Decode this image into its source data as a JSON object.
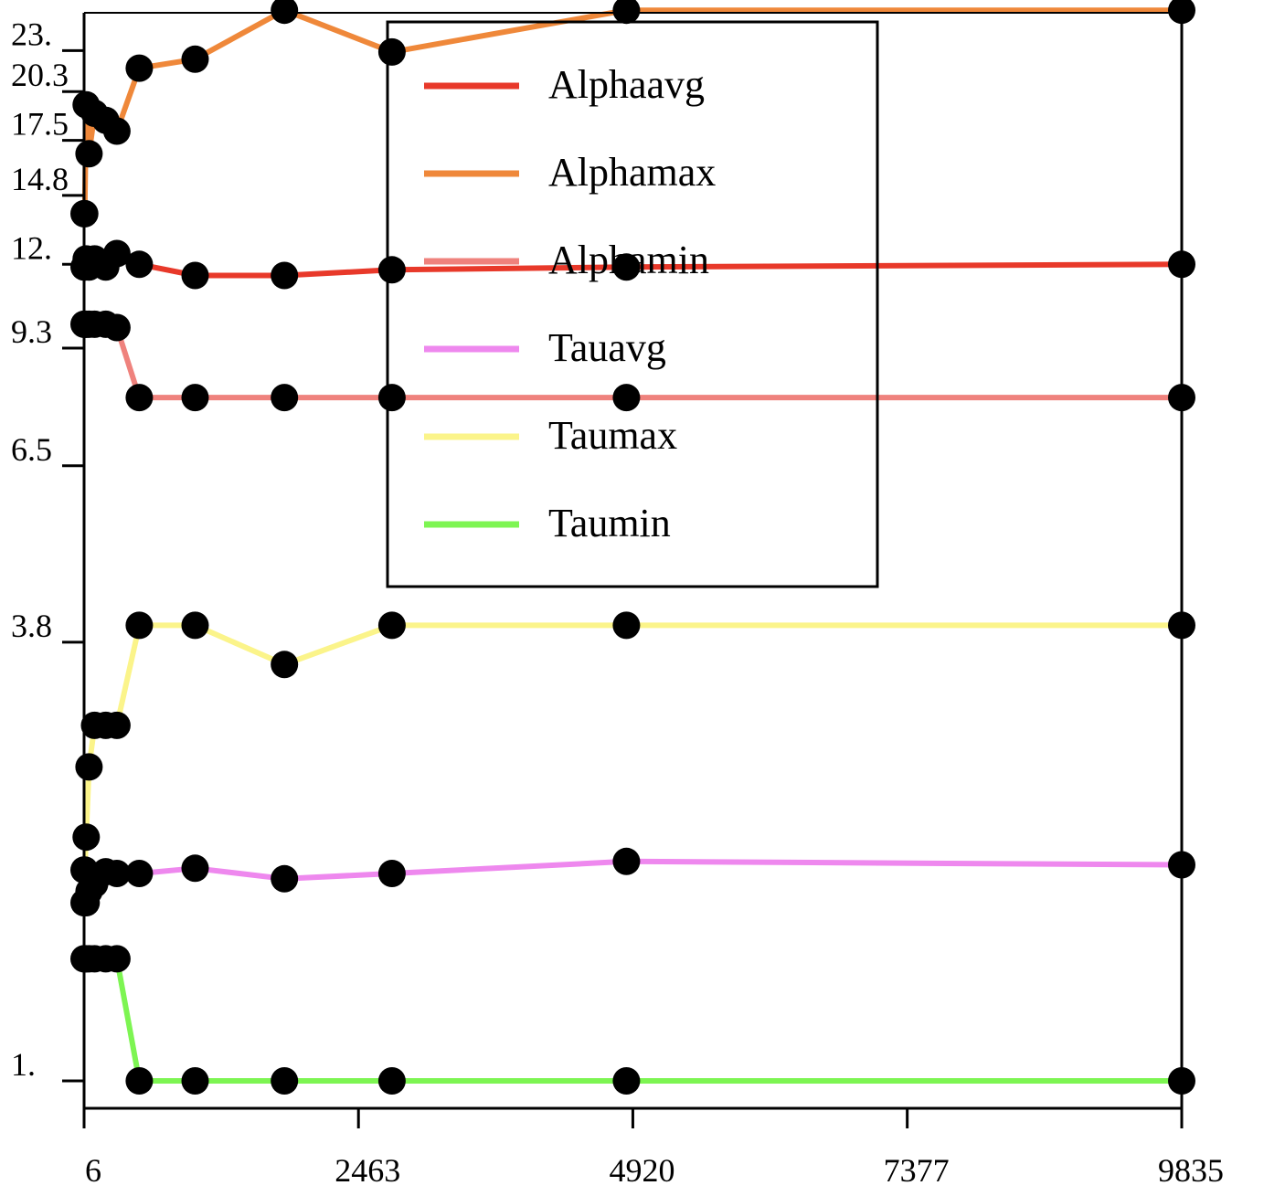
{
  "chart_data": {
    "type": "line",
    "x_ticks": [
      {
        "value": 6,
        "label": "6"
      },
      {
        "value": 2463,
        "label": "2463"
      },
      {
        "value": 4920,
        "label": "4920"
      },
      {
        "value": 7377,
        "label": "7377"
      },
      {
        "value": 9835,
        "label": "9835"
      }
    ],
    "y_scale": "log",
    "y_ticks": [
      {
        "value": 1.0,
        "label": "1."
      },
      {
        "value": 3.8,
        "label": "3.8"
      },
      {
        "value": 6.5,
        "label": "6.5"
      },
      {
        "value": 9.3,
        "label": "9.3"
      },
      {
        "value": 12.0,
        "label": "12."
      },
      {
        "value": 14.8,
        "label": "14.8"
      },
      {
        "value": 17.5,
        "label": "17.5"
      },
      {
        "value": 20.3,
        "label": "20.3"
      },
      {
        "value": 23.0,
        "label": "23."
      }
    ],
    "xlim": [
      6,
      9835
    ],
    "ylim": [
      0.92,
      25.8
    ],
    "legend_position": "top-center",
    "series": [
      {
        "name": "Alphaavg",
        "color": "#e8392a",
        "x": [
          6,
          12,
          25,
          50,
          100,
          200,
          300,
          500,
          1000,
          1800,
          2763,
          4862,
          9835
        ],
        "y": [
          11.9,
          11.9,
          12.2,
          11.9,
          12.2,
          11.9,
          12.4,
          12.0,
          11.6,
          11.6,
          11.8,
          11.9,
          12.0
        ]
      },
      {
        "name": "Alphamax",
        "color": "#ef883a",
        "x": [
          6,
          12,
          25,
          50,
          100,
          200,
          300,
          500,
          1000,
          1800,
          2763,
          4862,
          9835
        ],
        "y": [
          14.0,
          14.0,
          19.5,
          16.8,
          19.0,
          18.6,
          18.0,
          21.8,
          22.4,
          26.0,
          22.9,
          26.0,
          26.0
        ]
      },
      {
        "name": "Alphamin",
        "color": "#ef827d",
        "x": [
          6,
          12,
          25,
          50,
          100,
          200,
          300,
          500,
          1000,
          1800,
          2763,
          4862,
          9835
        ],
        "y": [
          10.0,
          10.0,
          10.0,
          10.0,
          10.0,
          10.0,
          9.9,
          8.0,
          8.0,
          8.0,
          8.0,
          8.0,
          8.0
        ]
      },
      {
        "name": "Tauavg",
        "color": "#ee88ee",
        "x": [
          6,
          12,
          25,
          50,
          100,
          200,
          300,
          500,
          1000,
          1800,
          2763,
          4862,
          9835
        ],
        "y": [
          1.72,
          1.72,
          1.72,
          1.78,
          1.82,
          1.89,
          1.88,
          1.88,
          1.91,
          1.85,
          1.88,
          1.95,
          1.93
        ]
      },
      {
        "name": "Taumax",
        "color": "#fbf48a",
        "x": [
          6,
          12,
          25,
          50,
          100,
          200,
          300,
          500,
          1000,
          1800,
          2763,
          4862,
          9835
        ],
        "y": [
          1.9,
          1.9,
          2.1,
          2.6,
          2.95,
          2.95,
          2.95,
          4.0,
          4.0,
          3.55,
          4.0,
          4.0,
          4.0
        ]
      },
      {
        "name": "Taumin",
        "color": "#7df552",
        "x": [
          6,
          12,
          25,
          50,
          100,
          200,
          300,
          500,
          1000,
          1800,
          2763,
          4862,
          9835
        ],
        "y": [
          1.45,
          1.45,
          1.45,
          1.45,
          1.45,
          1.45,
          1.45,
          1.0,
          1.0,
          1.0,
          1.0,
          1.0,
          1.0
        ]
      }
    ]
  }
}
